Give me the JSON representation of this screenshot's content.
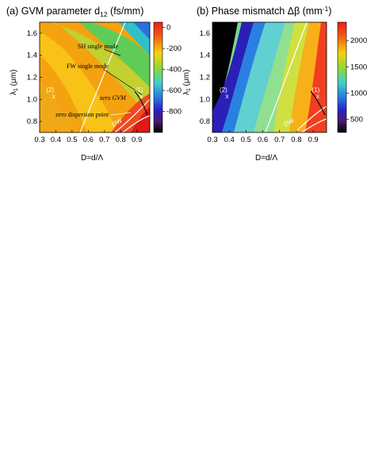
{
  "chart_data": [
    {
      "type": "heatmap",
      "title": "(a) GVM parameter d",
      "title_sub": "12",
      "title_tail": " (fs/mm)",
      "xlabel": "D=d/Λ",
      "ylabel": "λ",
      "ylabel_sub": "1",
      "ylabel_tail": " (μm)",
      "x_ticks": [
        "0.3",
        "0.4",
        "0.5",
        "0.6",
        "0.7",
        "0.8",
        "0.9"
      ],
      "y_ticks": [
        "0.8",
        "1.0",
        "1.2",
        "1.4",
        "1.6"
      ],
      "xlim": [
        0.3,
        0.98
      ],
      "ylim": [
        0.7,
        1.7
      ],
      "colorbar": {
        "min": -1000,
        "max": 50,
        "ticks": [
          "0",
          "-200",
          "-400",
          "-600",
          "-800"
        ]
      },
      "annotations": [
        "SH single mode",
        "FW single mode",
        "zero GVM",
        "zero dispersion point",
        "DW"
      ],
      "markers": [
        {
          "label": "(1)",
          "x": 0.93,
          "y": 1.03
        },
        {
          "label": "(2)",
          "x": 0.39,
          "y": 1.03
        }
      ]
    },
    {
      "type": "heatmap",
      "title": "(b) Phase mismatch Δβ (mm",
      "title_sup": "-1",
      "title_tail": ")",
      "xlabel": "D=d/Λ",
      "ylabel": "λ",
      "ylabel_sub": "1",
      "ylabel_tail": " (μm)",
      "x_ticks": [
        "0.3",
        "0.4",
        "0.5",
        "0.6",
        "0.7",
        "0.8",
        "0.9"
      ],
      "y_ticks": [
        "0.8",
        "1.0",
        "1.2",
        "1.4",
        "1.6"
      ],
      "xlim": [
        0.3,
        0.98
      ],
      "ylim": [
        0.7,
        1.7
      ],
      "colorbar": {
        "min": 250,
        "max": 2350,
        "ticks": [
          "2000",
          "1500",
          "1000",
          "500"
        ]
      },
      "annotations": [
        "DW"
      ],
      "markers": [
        {
          "label": "(1)",
          "x": 0.93,
          "y": 1.03
        },
        {
          "label": "(2)",
          "x": 0.39,
          "y": 1.03
        }
      ]
    }
  ]
}
